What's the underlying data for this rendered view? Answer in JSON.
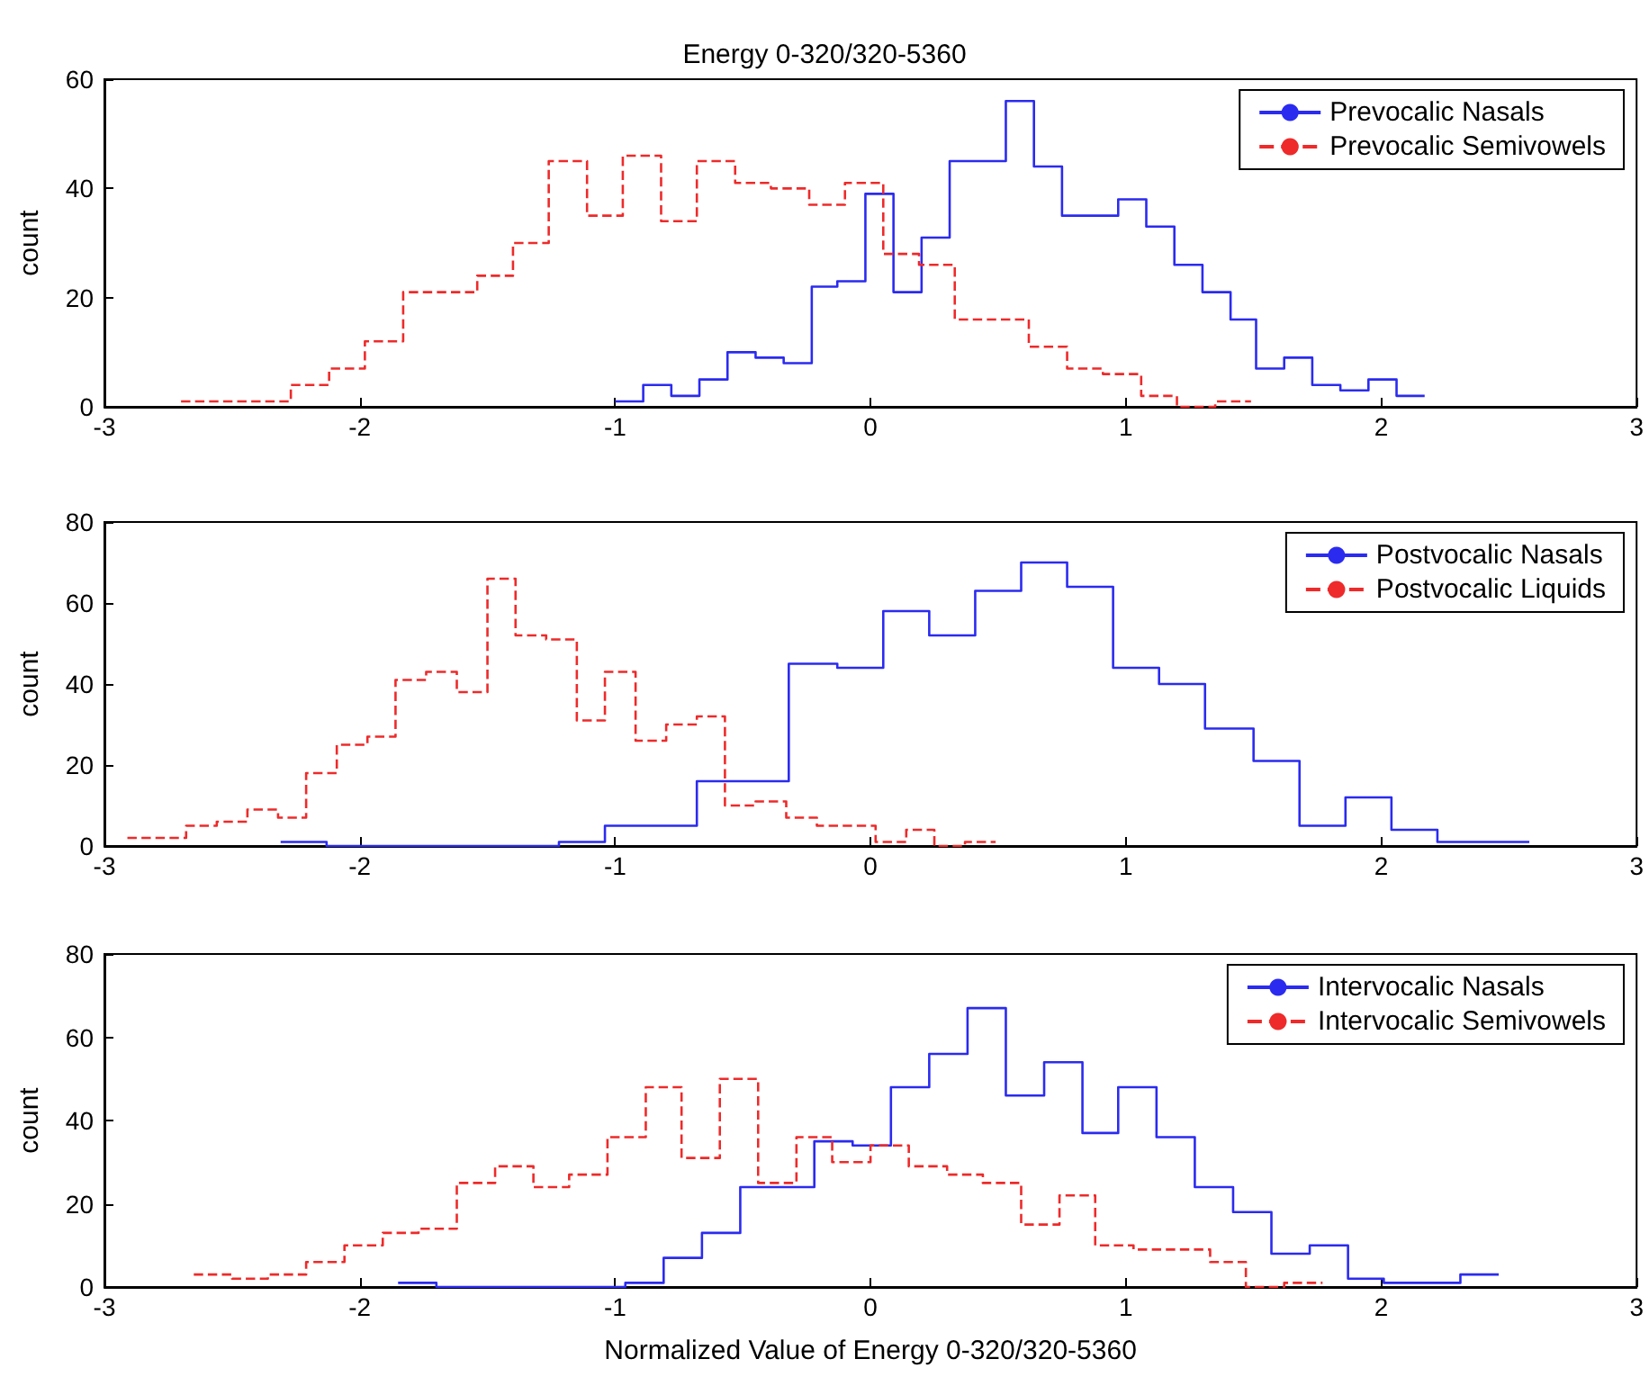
{
  "chart_data": [
    {
      "type": "step",
      "title": "Energy 0-320/320-5360",
      "ylabel": "count",
      "xlim": [
        -3,
        3
      ],
      "xticks": [
        -3,
        -2,
        -1,
        0,
        1,
        2,
        3
      ],
      "ylim": [
        0,
        60
      ],
      "yticks": [
        0,
        20,
        40,
        60
      ],
      "grid": false,
      "legend": "top right",
      "series": [
        {
          "name": "Prevocalic Nasals",
          "color": "#2b2bf0",
          "line_style": "solid",
          "x": [
            -1.0,
            -0.89,
            -0.78,
            -0.67,
            -0.56,
            -0.45,
            -0.34,
            -0.23,
            -0.13,
            -0.02,
            0.09,
            0.2,
            0.31,
            0.42,
            0.53,
            0.64,
            0.75,
            0.86,
            0.97,
            1.08,
            1.19,
            1.3,
            1.41,
            1.51,
            1.62,
            1.73,
            1.84,
            1.95,
            2.06,
            2.17
          ],
          "values": [
            1,
            4,
            2,
            5,
            10,
            9,
            8,
            22,
            23,
            39,
            21,
            31,
            45,
            45,
            56,
            44,
            35,
            35,
            38,
            33,
            26,
            21,
            16,
            7,
            9,
            4,
            3,
            5,
            2,
            2
          ]
        },
        {
          "name": "Prevocalic Semivowels",
          "color": "#ee2a2a",
          "line_style": "dashed",
          "x": [
            -2.7,
            -2.56,
            -2.41,
            -2.27,
            -2.12,
            -1.98,
            -1.83,
            -1.69,
            -1.54,
            -1.4,
            -1.26,
            -1.11,
            -0.97,
            -0.82,
            -0.68,
            -0.53,
            -0.39,
            -0.24,
            -0.1,
            0.05,
            0.19,
            0.33,
            0.48,
            0.62,
            0.77,
            0.91,
            1.06,
            1.2,
            1.35,
            1.49
          ],
          "values": [
            1,
            1,
            1,
            4,
            7,
            12,
            21,
            21,
            24,
            30,
            45,
            35,
            46,
            34,
            45,
            41,
            40,
            37,
            41,
            28,
            26,
            16,
            16,
            11,
            7,
            6,
            2,
            0,
            1,
            1
          ]
        }
      ]
    },
    {
      "type": "step",
      "ylabel": "count",
      "xlim": [
        -3,
        3
      ],
      "xticks": [
        -3,
        -2,
        -1,
        0,
        1,
        2,
        3
      ],
      "ylim": [
        0,
        80
      ],
      "yticks": [
        0,
        20,
        40,
        60,
        80
      ],
      "grid": false,
      "legend": "top right",
      "series": [
        {
          "name": "Postvocalic Nasals",
          "color": "#2b2bf0",
          "line_style": "solid",
          "x": [
            -2.31,
            -2.13,
            -1.94,
            -1.76,
            -1.58,
            -1.4,
            -1.22,
            -1.04,
            -0.86,
            -0.68,
            -0.5,
            -0.32,
            -0.13,
            0.05,
            0.23,
            0.41,
            0.59,
            0.77,
            0.95,
            1.13,
            1.31,
            1.5,
            1.68,
            1.86,
            2.04,
            2.22,
            2.4,
            2.58
          ],
          "values": [
            1,
            0,
            0,
            0,
            0,
            0,
            1,
            5,
            5,
            16,
            16,
            45,
            44,
            58,
            52,
            63,
            70,
            64,
            44,
            40,
            29,
            21,
            5,
            12,
            4,
            1,
            1,
            1
          ]
        },
        {
          "name": "Postvocalic Liquids",
          "color": "#ee2a2a",
          "line_style": "dashed",
          "x": [
            -2.91,
            -2.79,
            -2.68,
            -2.56,
            -2.44,
            -2.32,
            -2.21,
            -2.09,
            -1.97,
            -1.86,
            -1.74,
            -1.62,
            -1.5,
            -1.39,
            -1.27,
            -1.15,
            -1.04,
            -0.92,
            -0.8,
            -0.68,
            -0.57,
            -0.45,
            -0.33,
            -0.21,
            -0.1,
            0.02,
            0.14,
            0.25,
            0.37,
            0.49
          ],
          "values": [
            2,
            2,
            5,
            6,
            9,
            7,
            18,
            25,
            27,
            41,
            43,
            38,
            66,
            52,
            51,
            31,
            43,
            26,
            30,
            32,
            10,
            11,
            7,
            5,
            5,
            1,
            4,
            0,
            1,
            1
          ]
        }
      ]
    },
    {
      "type": "step",
      "ylabel": "count",
      "xlabel": "Normalized Value of Energy 0-320/320-5360",
      "xlim": [
        -3,
        3
      ],
      "xticks": [
        -3,
        -2,
        -1,
        0,
        1,
        2,
        3
      ],
      "ylim": [
        0,
        80
      ],
      "yticks": [
        0,
        20,
        40,
        60,
        80
      ],
      "grid": false,
      "legend": "top right",
      "series": [
        {
          "name": "Intervocalic Nasals",
          "color": "#2b2bf0",
          "line_style": "solid",
          "x": [
            -1.85,
            -1.7,
            -1.55,
            -1.4,
            -1.25,
            -1.11,
            -0.96,
            -0.81,
            -0.66,
            -0.51,
            -0.36,
            -0.22,
            -0.07,
            0.08,
            0.23,
            0.38,
            0.53,
            0.68,
            0.83,
            0.97,
            1.12,
            1.27,
            1.42,
            1.57,
            1.72,
            1.87,
            2.01,
            2.16,
            2.31,
            2.46
          ],
          "values": [
            1,
            0,
            0,
            0,
            0,
            0,
            1,
            7,
            13,
            24,
            24,
            35,
            34,
            48,
            56,
            67,
            46,
            54,
            37,
            48,
            36,
            24,
            18,
            8,
            10,
            2,
            1,
            1,
            3,
            3
          ]
        },
        {
          "name": "Intervocalic Semivowels",
          "color": "#ee2a2a",
          "line_style": "dashed",
          "x": [
            -2.65,
            -2.5,
            -2.36,
            -2.21,
            -2.06,
            -1.91,
            -1.77,
            -1.62,
            -1.47,
            -1.32,
            -1.18,
            -1.03,
            -0.88,
            -0.74,
            -0.59,
            -0.44,
            -0.29,
            -0.15,
            0.0,
            0.15,
            0.3,
            0.44,
            0.59,
            0.74,
            0.88,
            1.03,
            1.18,
            1.33,
            1.47,
            1.62,
            1.77
          ],
          "values": [
            3,
            2,
            3,
            6,
            10,
            13,
            14,
            25,
            29,
            24,
            27,
            36,
            48,
            31,
            50,
            25,
            36,
            30,
            34,
            29,
            27,
            25,
            15,
            22,
            10,
            9,
            9,
            6,
            0,
            1,
            1
          ]
        }
      ]
    }
  ]
}
